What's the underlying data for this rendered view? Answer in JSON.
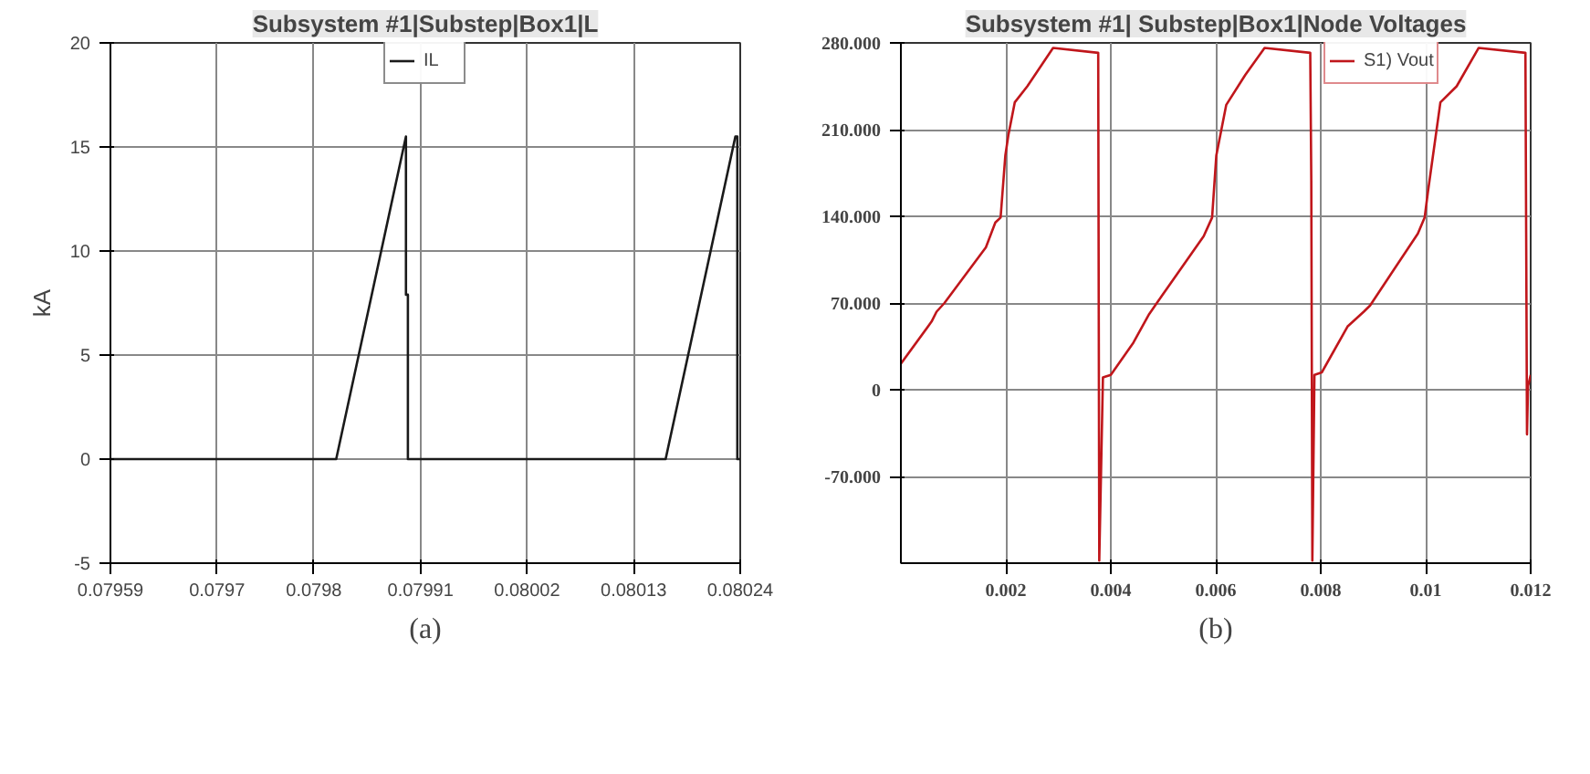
{
  "chart_data": [
    {
      "type": "line",
      "title": "Subsystem #1|Substep|Box1|L",
      "ylabel": "kA",
      "legend": "top",
      "grid": true,
      "xlim": [
        0.07959,
        0.08024
      ],
      "ylim": [
        -5,
        20
      ],
      "xticks": [
        0.07959,
        0.0797,
        0.0798,
        0.07991,
        0.08002,
        0.08013,
        0.08024
      ],
      "yticks": [
        -5,
        0,
        5,
        10,
        15,
        20
      ],
      "annotations": [
        "(a)"
      ],
      "series": [
        {
          "name": "IL",
          "color": "#1a1a1a",
          "x": [
            0.07959,
            0.079823,
            0.079895,
            0.079895,
            0.079897,
            0.079897,
            0.080163,
            0.080235,
            0.080237,
            0.080237,
            0.08024
          ],
          "values": [
            0,
            0,
            15.5,
            7.9,
            7.9,
            0,
            0,
            15.5,
            15.5,
            0,
            0
          ]
        }
      ]
    },
    {
      "type": "line",
      "title": "Subsystem #1| Substep|Box1|Node Voltages",
      "legend": "top",
      "grid": true,
      "xlim": [
        0,
        0.012
      ],
      "ylim": [
        -140,
        280
      ],
      "xticks": [
        0.002,
        0.004,
        0.006,
        0.008,
        0.01,
        0.012
      ],
      "yticks": [
        {
          "value": -70,
          "label": "-70.000"
        },
        0,
        {
          "value": 70,
          "label": "70.000"
        },
        {
          "value": 140,
          "label": "140.000"
        },
        {
          "value": 210,
          "label": "210.000"
        },
        {
          "value": 280,
          "label": "280.000"
        }
      ],
      "annotations": [
        "(b)"
      ],
      "series": [
        {
          "name": "S1) Vout",
          "color": "#c0161b",
          "x": [
            0,
            0.000585,
            0.00068,
            0.00083,
            0.00162,
            0.0018,
            0.0019,
            0.00199,
            0.00205,
            0.00217,
            0.00241,
            0.0029,
            0.00376,
            0.00378,
            0.00385,
            0.004,
            0.00443,
            0.00473,
            0.00491,
            0.00577,
            0.00593,
            0.00601,
            0.0062,
            0.00656,
            0.00693,
            0.0078,
            0.00782,
            0.00784,
            0.00788,
            0.00802,
            0.00851,
            0.00882,
            0.00894,
            0.00985,
            0.00998,
            0.01004,
            0.01028,
            0.01059,
            0.01101,
            0.0119,
            0.01193,
            0.01195,
            0.012
          ],
          "values": [
            21,
            55,
            63,
            70,
            115,
            135,
            139,
            189,
            206,
            232,
            245,
            276,
            272,
            -138,
            10,
            12,
            38,
            61,
            72,
            124,
            139,
            189,
            230,
            254,
            276,
            272,
            169,
            -138,
            12,
            14,
            51,
            63,
            68,
            126,
            139,
            159,
            232,
            245,
            276,
            272,
            -36,
            3,
            12
          ]
        }
      ]
    }
  ]
}
